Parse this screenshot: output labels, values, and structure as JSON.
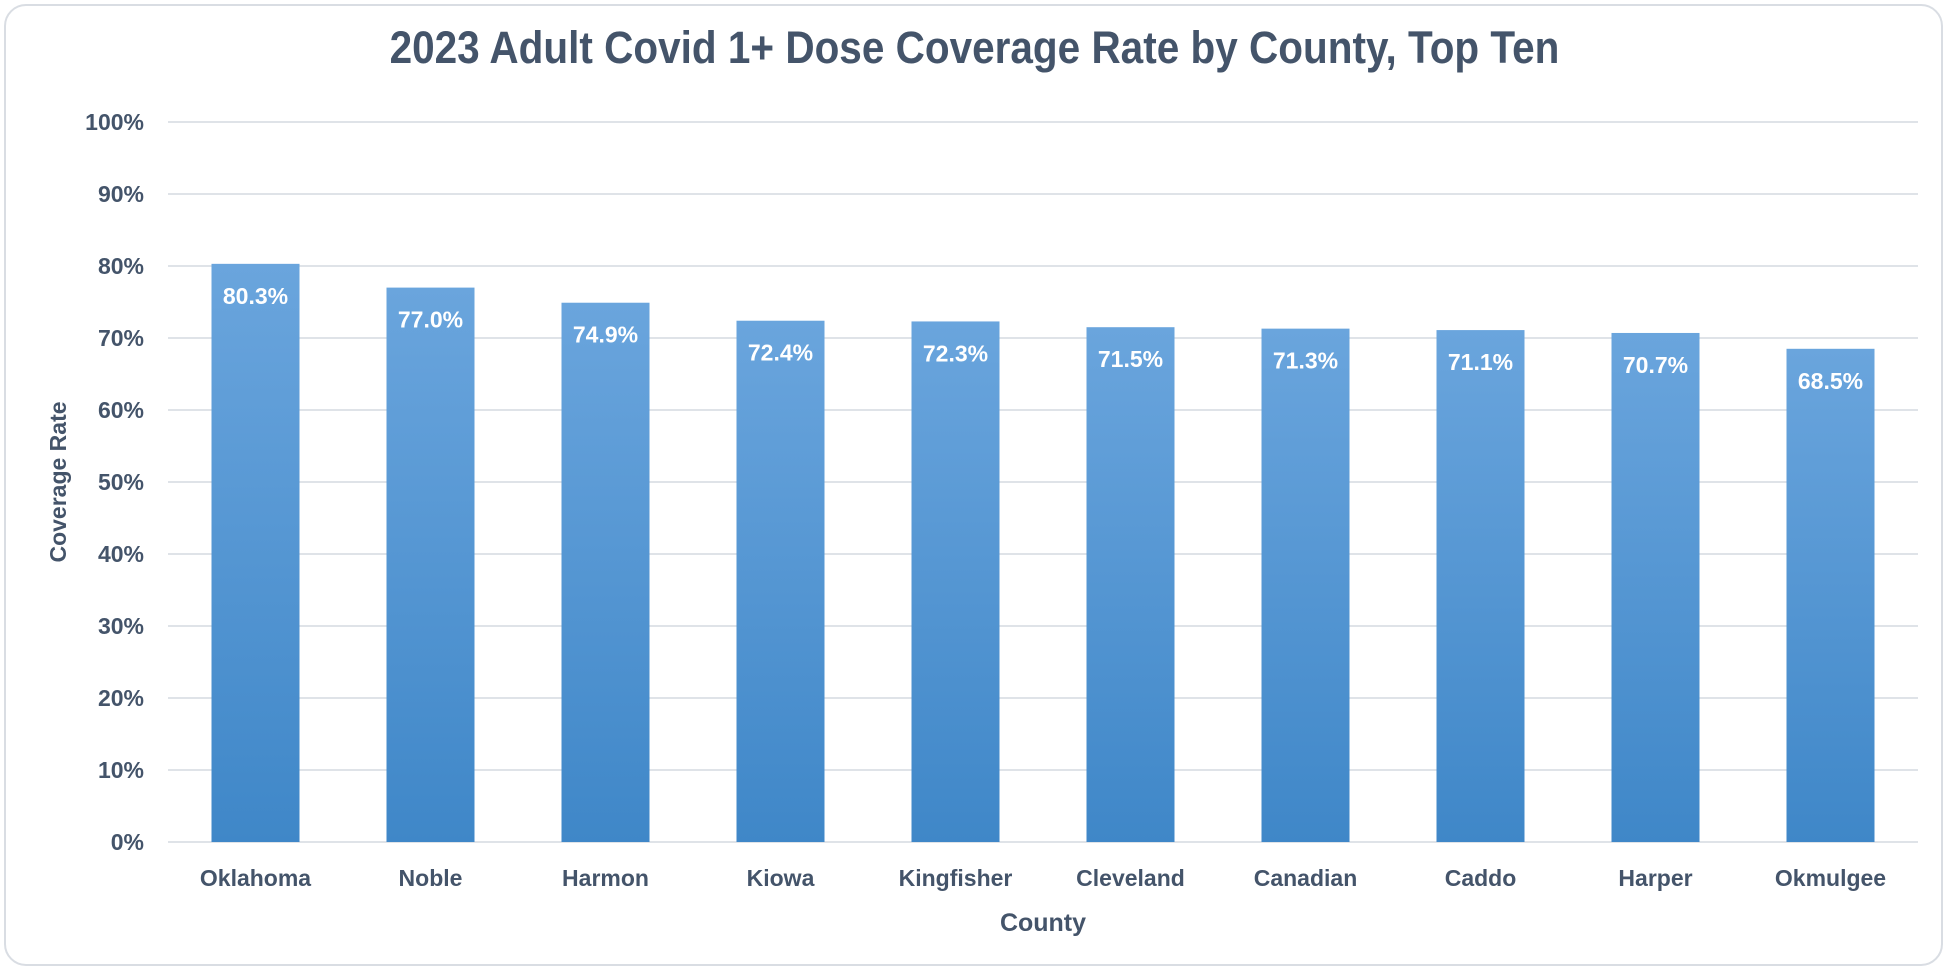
{
  "chart_data": {
    "type": "bar",
    "title": "2023 Adult Covid 1+ Dose Coverage Rate by County,  Top Ten",
    "xlabel": "County",
    "ylabel": "Coverage Rate",
    "categories": [
      "Oklahoma",
      "Noble",
      "Harmon",
      "Kiowa",
      "Kingfisher",
      "Cleveland",
      "Canadian",
      "Caddo",
      "Harper",
      "Okmulgee"
    ],
    "values": [
      80.3,
      77.0,
      74.9,
      72.4,
      72.3,
      71.5,
      71.3,
      71.1,
      70.7,
      68.5
    ],
    "data_labels": [
      "80.3%",
      "77.0%",
      "74.9%",
      "72.4%",
      "72.3%",
      "71.5%",
      "71.3%",
      "71.1%",
      "70.7%",
      "68.5%"
    ],
    "ylim": [
      0,
      100
    ],
    "yticks": [
      0,
      10,
      20,
      30,
      40,
      50,
      60,
      70,
      80,
      90,
      100
    ],
    "ytick_labels": [
      "0%",
      "10%",
      "20%",
      "30%",
      "40%",
      "50%",
      "60%",
      "70%",
      "80%",
      "90%",
      "100%"
    ],
    "grid": true,
    "legend": "none",
    "colors": {
      "bar_top": "#6aa5dd",
      "bar_bottom": "#3f87c8",
      "text": "#44546a",
      "grid": "#dfe3e8",
      "label": "#ffffff"
    }
  }
}
